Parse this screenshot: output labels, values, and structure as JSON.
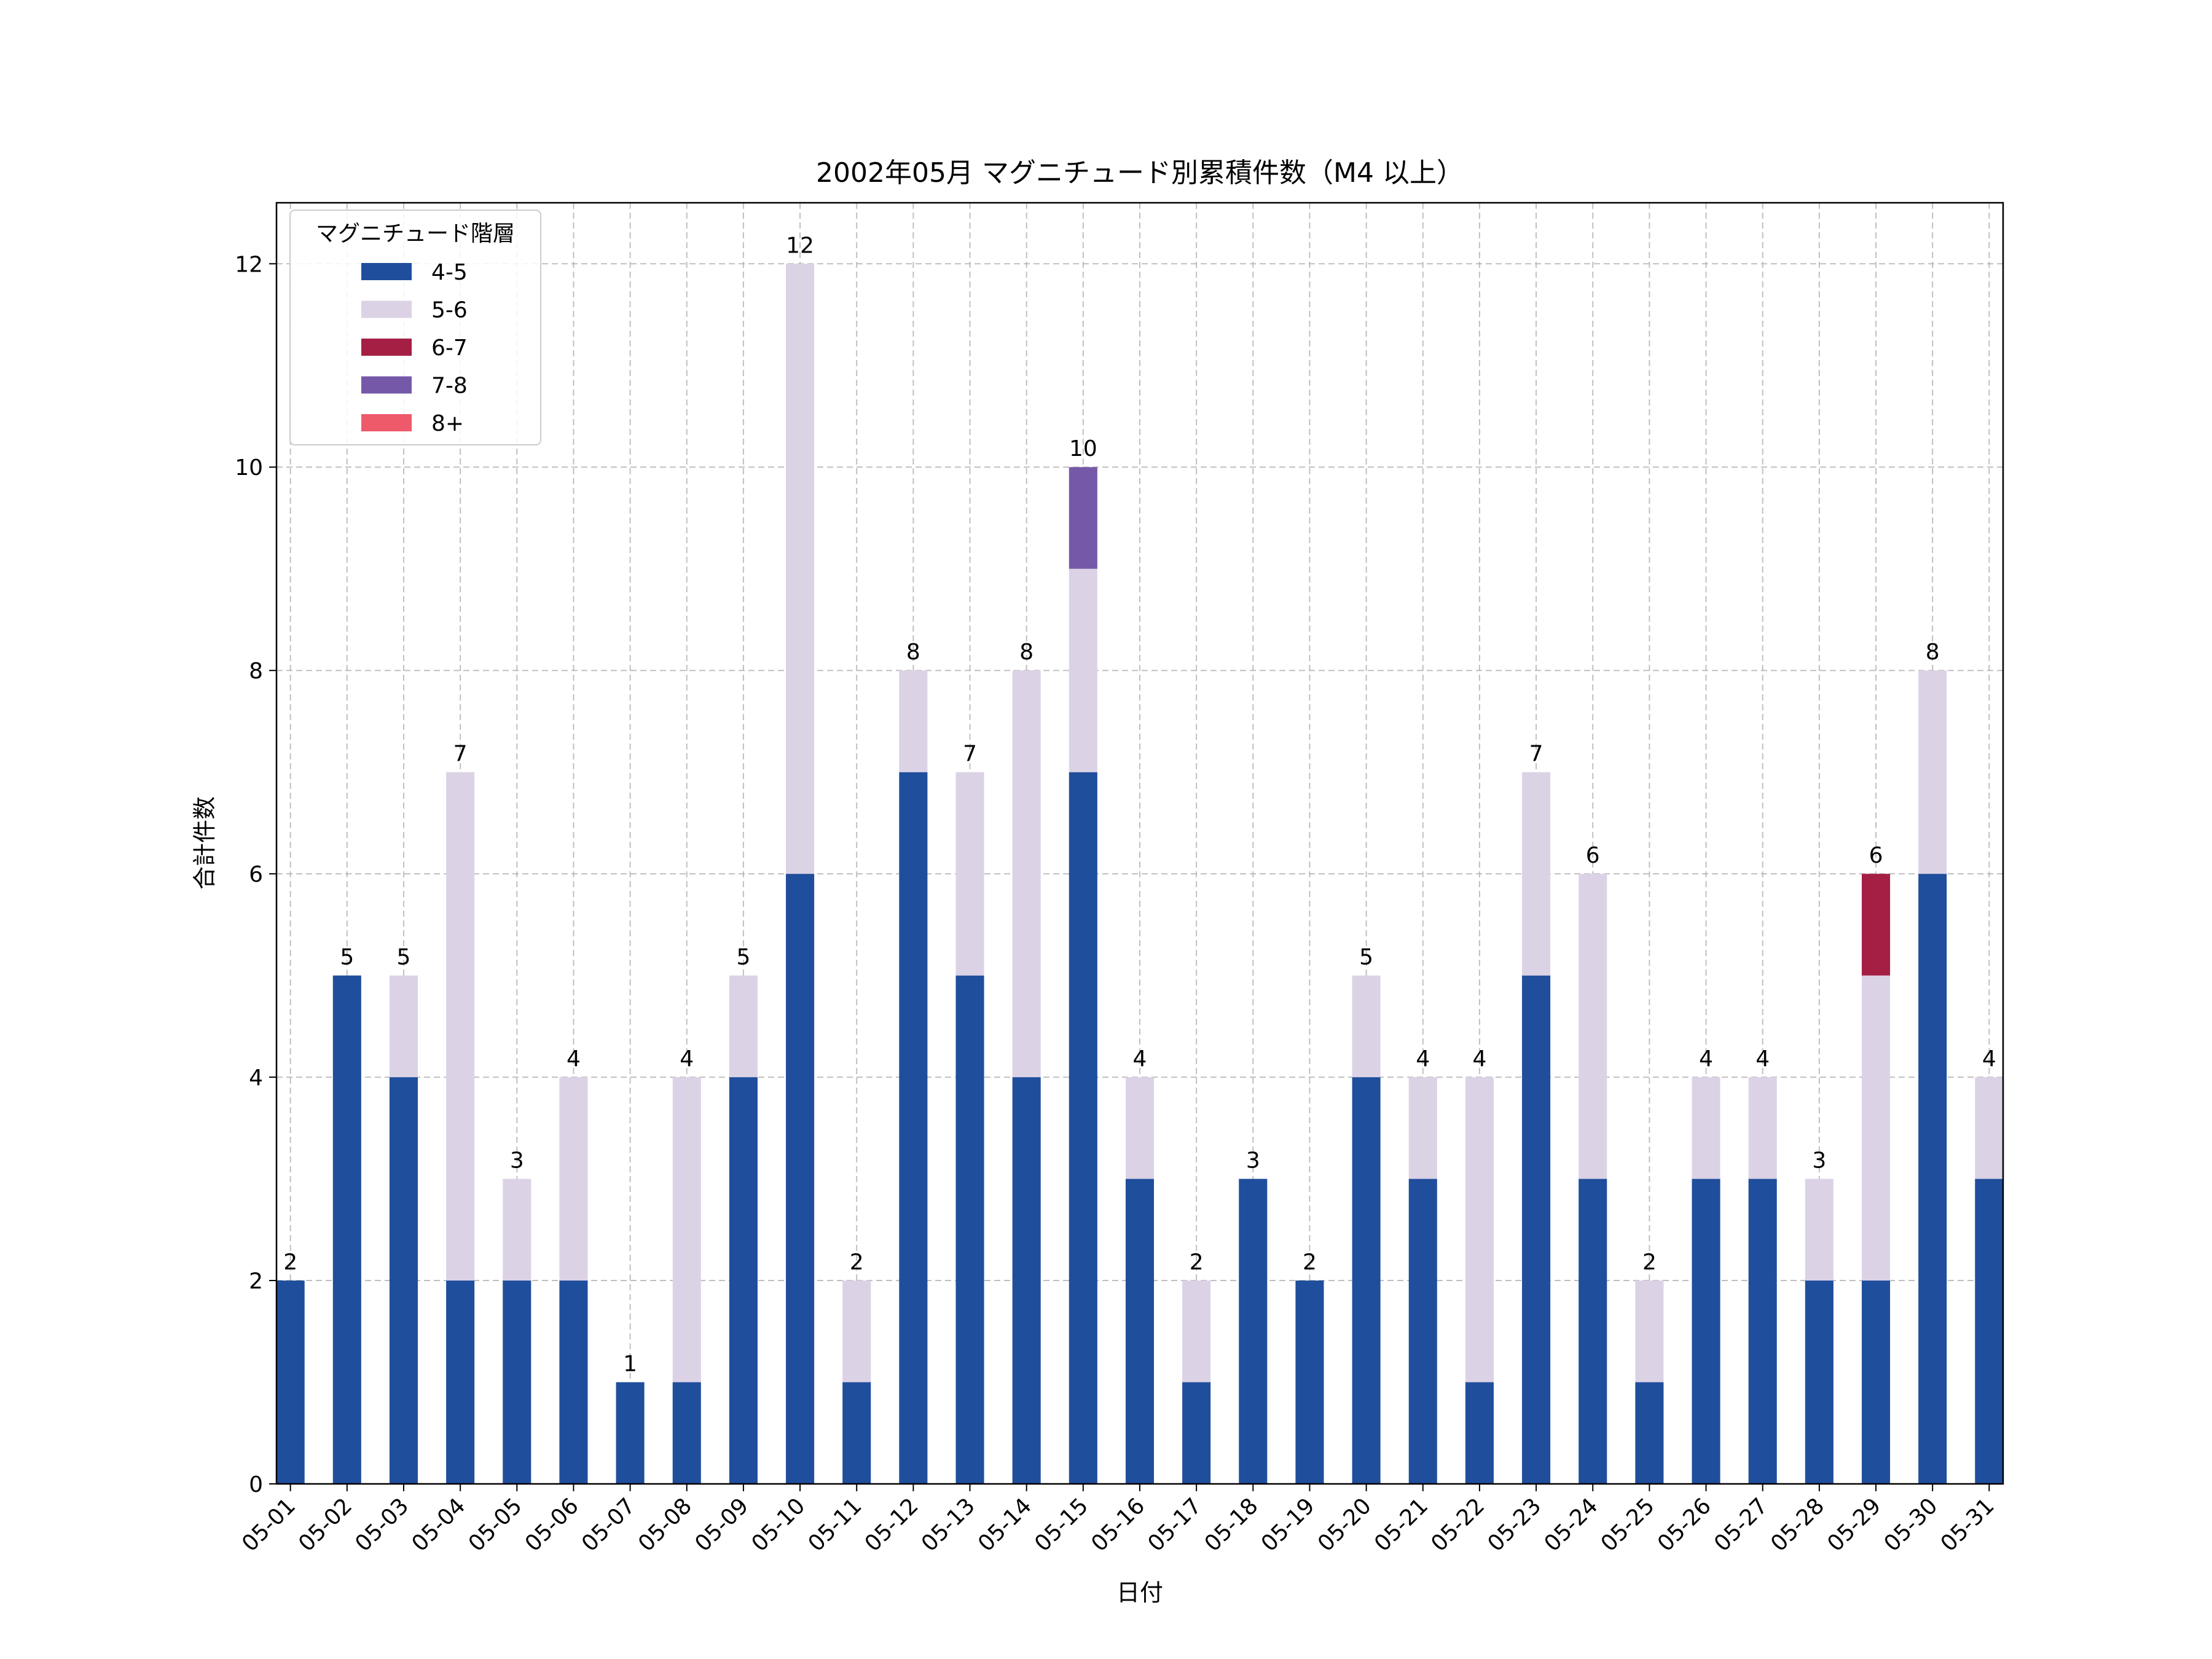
{
  "chart_data": {
    "type": "bar",
    "stacked": true,
    "title": "2002年05月 マグニチュード別累積件数（M4 以上）",
    "xlabel": "日付",
    "ylabel": "合計件数",
    "ylim": [
      0,
      12.6
    ],
    "yticks": [
      0,
      2,
      4,
      6,
      8,
      10,
      12
    ],
    "grid": true,
    "legend": {
      "title": "マグニチュード階層",
      "placement": "top-left"
    },
    "categories": [
      "05-01",
      "05-02",
      "05-03",
      "05-04",
      "05-05",
      "05-06",
      "05-07",
      "05-08",
      "05-09",
      "05-10",
      "05-11",
      "05-12",
      "05-13",
      "05-14",
      "05-15",
      "05-16",
      "05-17",
      "05-18",
      "05-19",
      "05-20",
      "05-21",
      "05-22",
      "05-23",
      "05-24",
      "05-25",
      "05-26",
      "05-27",
      "05-28",
      "05-29",
      "05-30",
      "05-31"
    ],
    "series": [
      {
        "name": "4-5",
        "color": "#1f4e9c",
        "values": [
          2,
          5,
          4,
          2,
          2,
          2,
          1,
          1,
          4,
          6,
          1,
          7,
          5,
          4,
          7,
          3,
          1,
          3,
          2,
          4,
          3,
          1,
          5,
          3,
          1,
          3,
          3,
          2,
          2,
          6,
          3
        ]
      },
      {
        "name": "5-6",
        "color": "#dcd2e6",
        "values": [
          0,
          0,
          1,
          5,
          1,
          2,
          0,
          3,
          1,
          6,
          1,
          1,
          2,
          4,
          2,
          1,
          1,
          0,
          0,
          1,
          1,
          3,
          2,
          3,
          1,
          1,
          1,
          1,
          3,
          2,
          1
        ]
      },
      {
        "name": "6-7",
        "color": "#a51f45",
        "values": [
          0,
          0,
          0,
          0,
          0,
          0,
          0,
          0,
          0,
          0,
          0,
          0,
          0,
          0,
          0,
          0,
          0,
          0,
          0,
          0,
          0,
          0,
          0,
          0,
          0,
          0,
          0,
          0,
          1,
          0,
          0
        ]
      },
      {
        "name": "7-8",
        "color": "#7559a8",
        "values": [
          0,
          0,
          0,
          0,
          0,
          0,
          0,
          0,
          0,
          0,
          0,
          0,
          0,
          0,
          1,
          0,
          0,
          0,
          0,
          0,
          0,
          0,
          0,
          0,
          0,
          0,
          0,
          0,
          0,
          0,
          0
        ]
      },
      {
        "name": "8+",
        "color": "#ee5a6a",
        "values": [
          0,
          0,
          0,
          0,
          0,
          0,
          0,
          0,
          0,
          0,
          0,
          0,
          0,
          0,
          0,
          0,
          0,
          0,
          0,
          0,
          0,
          0,
          0,
          0,
          0,
          0,
          0,
          0,
          0,
          0,
          0
        ]
      }
    ],
    "totals": [
      2,
      5,
      5,
      7,
      3,
      4,
      1,
      4,
      5,
      12,
      2,
      8,
      7,
      8,
      10,
      4,
      2,
      3,
      2,
      5,
      4,
      4,
      7,
      6,
      2,
      4,
      4,
      3,
      6,
      8,
      4
    ]
  }
}
